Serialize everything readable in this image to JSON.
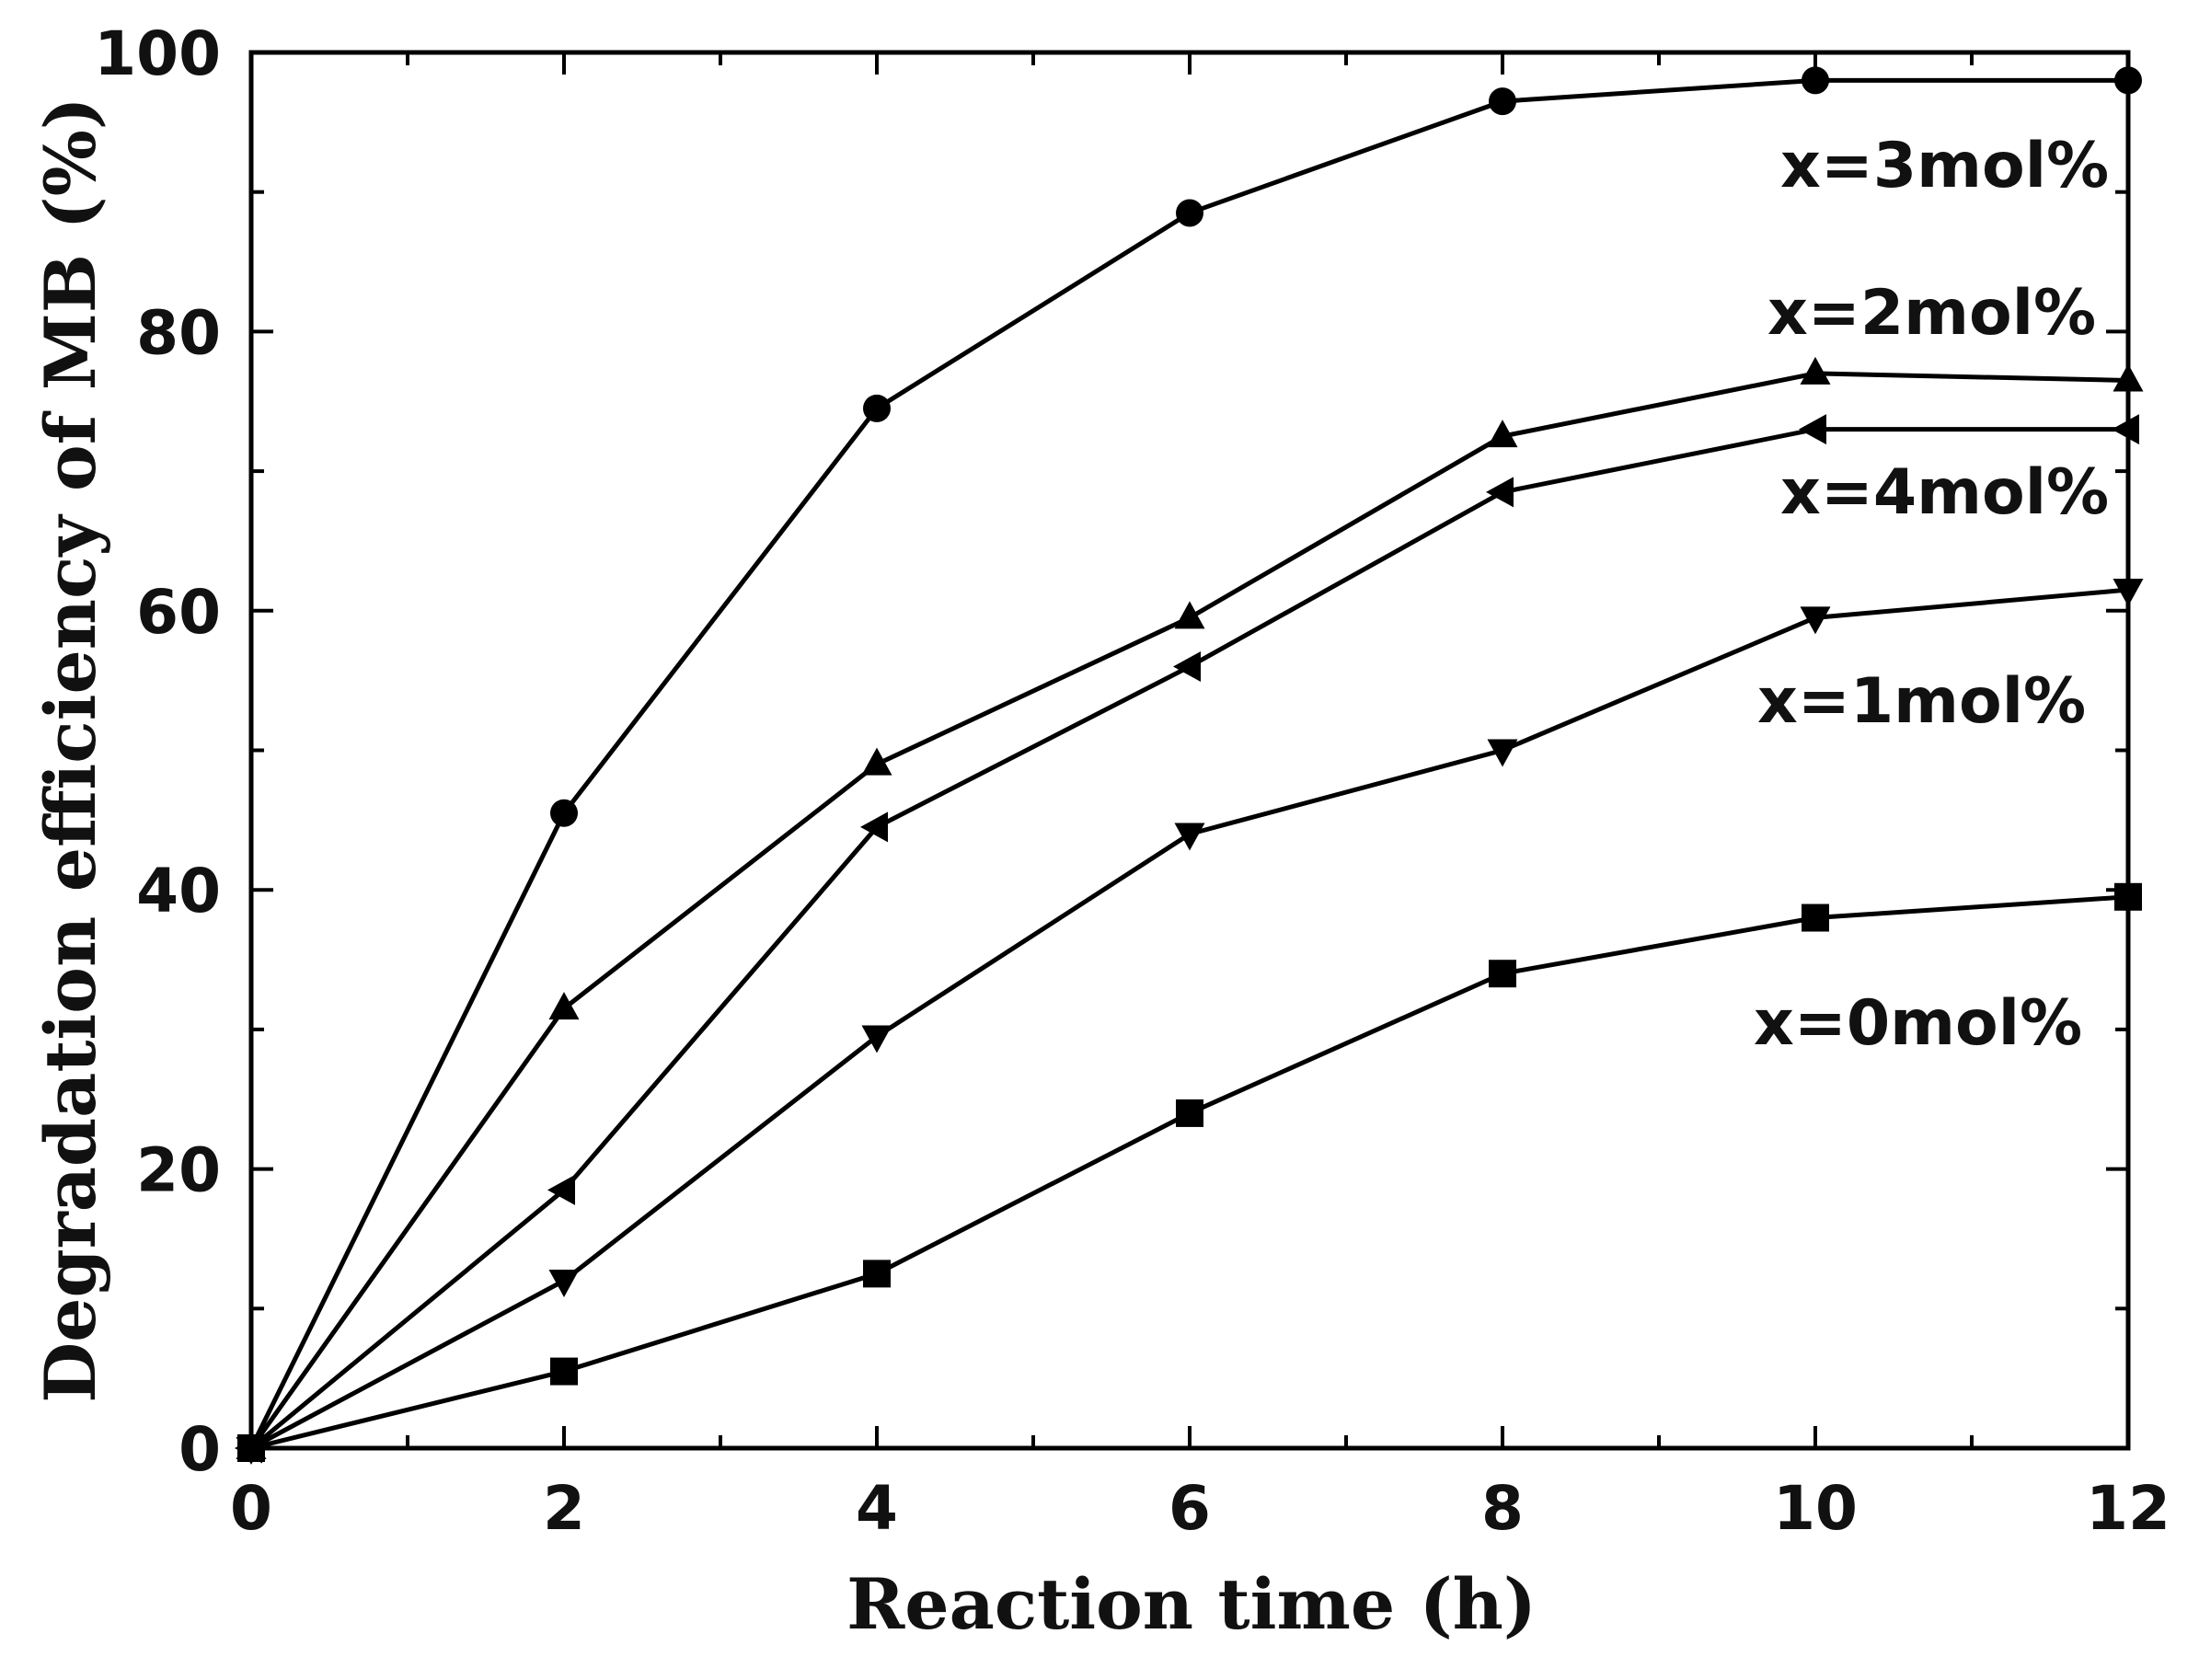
{
  "chart_data": {
    "type": "line",
    "title": "",
    "xlabel": "Reaction time (h)",
    "ylabel": "Degradation efficiency of MB (%)",
    "xlim": [
      0,
      12
    ],
    "ylim": [
      0,
      100
    ],
    "xticks": [
      0,
      2,
      4,
      6,
      8,
      10,
      12
    ],
    "yticks": [
      0,
      20,
      40,
      60,
      80,
      100
    ],
    "x": [
      0,
      2,
      4,
      6,
      8,
      10,
      12
    ],
    "grid": false,
    "series": [
      {
        "name": "x=3mol%",
        "marker": "circle",
        "values": [
          0,
          45.5,
          74.5,
          88.5,
          96.5,
          98,
          98
        ]
      },
      {
        "name": "x=2mol%",
        "marker": "triangle-up",
        "values": [
          0,
          31.5,
          49,
          59.5,
          72.5,
          77,
          76.5
        ]
      },
      {
        "name": "x=4mol%",
        "marker": "triangle-left",
        "values": [
          0,
          18.5,
          44.5,
          56,
          68.5,
          73,
          73
        ]
      },
      {
        "name": "x=1mol%",
        "marker": "triangle-down",
        "values": [
          0,
          12,
          29.5,
          44,
          50,
          59.5,
          61.5
        ]
      },
      {
        "name": "x=0mol%",
        "marker": "square",
        "values": [
          0,
          5.5,
          12.5,
          24,
          34,
          38,
          39.5
        ]
      }
    ]
  }
}
